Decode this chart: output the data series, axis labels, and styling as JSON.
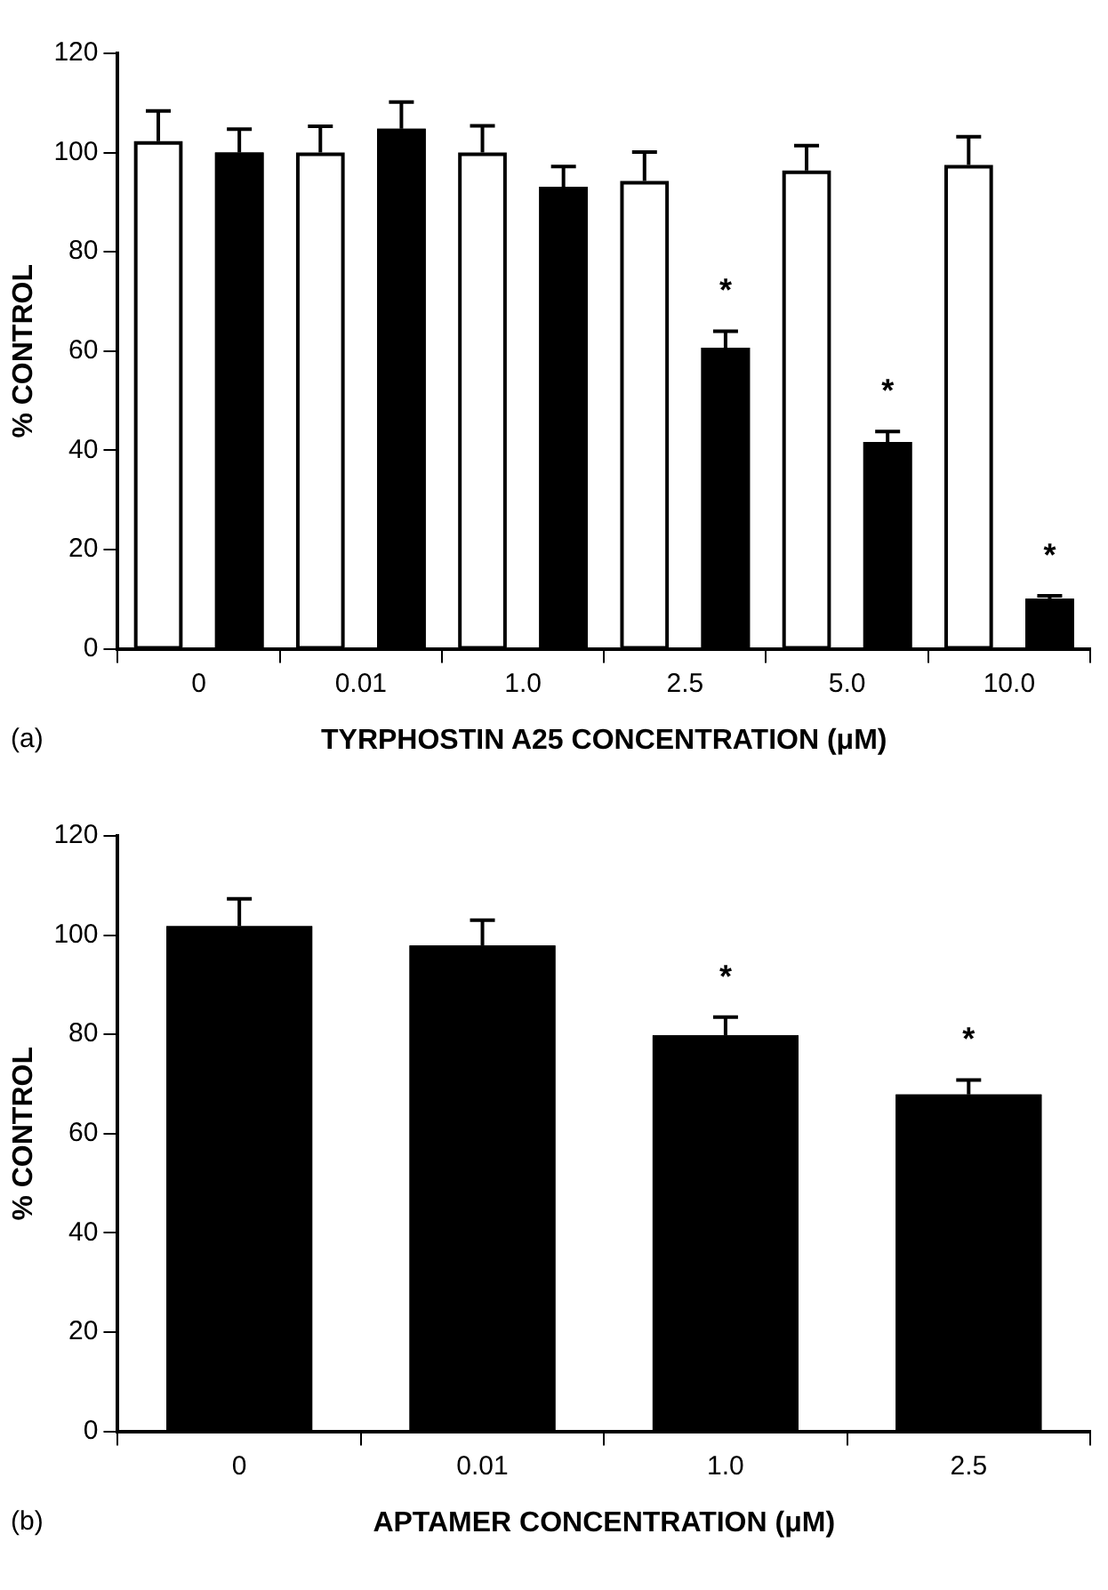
{
  "chart_data": [
    {
      "type": "bar",
      "xlabel": "TYRPHOSTIN A25 CONCENTRATION (μM)",
      "ylabel": "% CONTROL",
      "categories": [
        "0",
        "0.01",
        "1.0",
        "2.5",
        "5.0",
        "10.0"
      ],
      "series": [
        {
          "color": "#ffffff",
          "values": [
            102.3,
            100,
            100,
            94.3,
            96.4,
            97.5
          ],
          "errors": [
            [
              102.3,
              108.4
            ],
            [
              100,
              105.3
            ],
            [
              100,
              105.4
            ],
            [
              94.3,
              100.1
            ],
            [
              96.4,
              101.4
            ],
            [
              97.5,
              103.2
            ]
          ]
        },
        {
          "color": "#000000",
          "values": [
            100,
            104.8,
            93.1,
            60.7,
            41.7,
            10.1
          ],
          "errors": [
            [
              100,
              104.7
            ],
            [
              104.8,
              110.2
            ],
            [
              93.1,
              97.2
            ],
            [
              60.7,
              64
            ],
            [
              41.7,
              43.8
            ],
            [
              10.1,
              10.7
            ]
          ]
        }
      ],
      "ylim": [
        0,
        120
      ],
      "yticks": [
        0,
        20,
        40,
        60,
        80,
        100,
        120
      ],
      "grid": false,
      "legend": false,
      "annotations": [
        "(a)",
        "*",
        "*",
        "*"
      ]
    },
    {
      "type": "bar",
      "xlabel": "APTAMER CONCENTRATION (μM)",
      "ylabel": "% CONTROL",
      "categories": [
        "0",
        "0.01",
        "1.0",
        "2.5"
      ],
      "series": [
        {
          "color": "#000000",
          "values": [
            101.8,
            97.9,
            79.8,
            67.9
          ],
          "errors": [
            [
              101.8,
              107.3
            ],
            [
              97.9,
              103
            ],
            [
              79.8,
              83.5
            ],
            [
              67.9,
              70.8
            ]
          ]
        }
      ],
      "ylim": [
        0,
        120
      ],
      "yticks": [
        0,
        20,
        40,
        60,
        80,
        100,
        120
      ],
      "grid": false,
      "legend": false,
      "annotations": [
        "(b)",
        "*",
        "*"
      ]
    }
  ]
}
